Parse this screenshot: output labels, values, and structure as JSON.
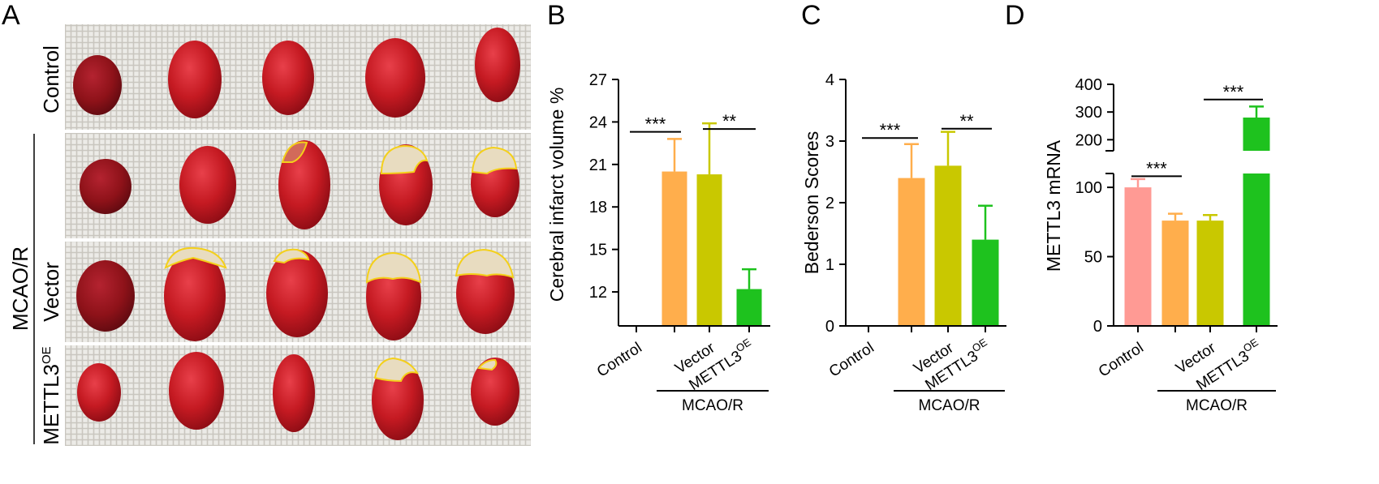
{
  "panel_labels": [
    "A",
    "B",
    "C",
    "D"
  ],
  "panel_a": {
    "row_labels": [
      "Control",
      "Vector",
      "METTL3"
    ],
    "row_label_superscript": "OE",
    "group_label": "MCAO/R",
    "colors": {
      "tissue": "#c01818",
      "tissue_dark": "#8e1016",
      "infarct": "#e8dcc0",
      "outline": "#f4d01a",
      "mesh": "#e9e7e2"
    }
  },
  "chart_data": [
    {
      "type": "bar",
      "panel": "B",
      "title": "",
      "ylabel": "Cerebral infarct volume %",
      "xlabel": "",
      "categories": [
        "Control",
        "Vector",
        "METTL3"
      ],
      "category_superscripts": [
        "",
        "",
        "OE"
      ],
      "bar_labels": [
        "Control",
        "",
        "Vector",
        "METTL3"
      ],
      "bars": [
        {
          "group": "Control",
          "value": null,
          "error": null,
          "color": "#ffffff"
        },
        {
          "group": "",
          "value": 20.5,
          "error": 2.3,
          "color": "#ffae4c"
        },
        {
          "group": "Vector",
          "value": 20.3,
          "error": 3.6,
          "color": "#c9c800"
        },
        {
          "group": "METTL3",
          "value": 12.2,
          "error": 1.4,
          "color": "#1ec21e"
        }
      ],
      "ylim": [
        9.6,
        27
      ],
      "yticks": [
        12,
        15,
        18,
        21,
        24,
        27
      ],
      "group_label": "MCAO/R",
      "significance": [
        {
          "between": [
            0,
            1
          ],
          "label": "***",
          "y": 23.3
        },
        {
          "between": [
            2,
            3
          ],
          "label": "**",
          "y": 23.5
        }
      ]
    },
    {
      "type": "bar",
      "panel": "C",
      "title": "",
      "ylabel": "Bederson Scores",
      "xlabel": "",
      "categories": [
        "Control",
        "Vector",
        "METTL3"
      ],
      "category_superscripts": [
        "",
        "",
        "OE"
      ],
      "bars": [
        {
          "group": "Control",
          "value": 0,
          "error": 0,
          "color": "#ffffff"
        },
        {
          "group": "",
          "value": 2.4,
          "error": 0.55,
          "color": "#ffae4c"
        },
        {
          "group": "Vector",
          "value": 2.6,
          "error": 0.55,
          "color": "#c9c800"
        },
        {
          "group": "METTL3",
          "value": 1.4,
          "error": 0.55,
          "color": "#1ec21e"
        }
      ],
      "ylim": [
        0,
        4
      ],
      "yticks": [
        0,
        1,
        2,
        3,
        4
      ],
      "group_label": "MCAO/R",
      "significance": [
        {
          "between": [
            0,
            1
          ],
          "label": "***",
          "y": 3.05
        },
        {
          "between": [
            2,
            3
          ],
          "label": "**",
          "y": 3.2
        }
      ]
    },
    {
      "type": "bar",
      "panel": "D",
      "title": "",
      "ylabel": "METTL3 mRNA",
      "xlabel": "",
      "categories": [
        "Control",
        "Vector",
        "METTL3"
      ],
      "category_superscripts": [
        "",
        "",
        "OE"
      ],
      "bars": [
        {
          "group": "Control",
          "value": 100,
          "error": 6,
          "color": "#ff9a94"
        },
        {
          "group": "",
          "value": 76,
          "error": 5,
          "color": "#ffae4c"
        },
        {
          "group": "Vector",
          "value": 76,
          "error": 4,
          "color": "#c9c800"
        },
        {
          "group": "METTL3",
          "value": 280,
          "error": 40,
          "color": "#1ec21e"
        }
      ],
      "axis_break": {
        "lower": [
          0,
          110
        ],
        "upper": [
          160,
          400
        ]
      },
      "yticks_lower": [
        0,
        50,
        100
      ],
      "yticks_upper": [
        200,
        300,
        400
      ],
      "group_label": "MCAO/R",
      "significance": [
        {
          "between": [
            0,
            1
          ],
          "label": "***",
          "y": 108
        },
        {
          "between": [
            2,
            3
          ],
          "label": "***",
          "y": 345
        }
      ]
    }
  ]
}
